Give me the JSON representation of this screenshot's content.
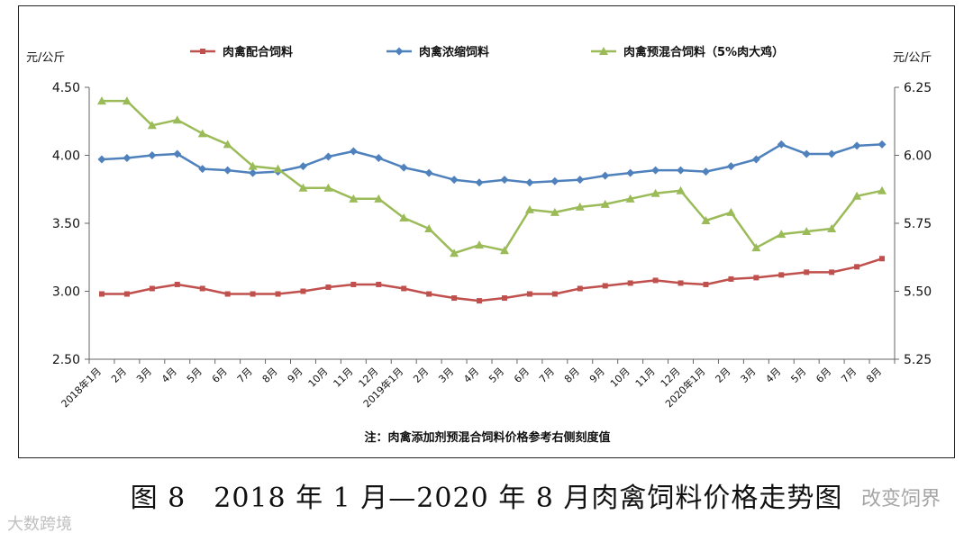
{
  "chart_data": {
    "type": "line",
    "categories": [
      "2018年1月",
      "2月",
      "3月",
      "4月",
      "5月",
      "6月",
      "7月",
      "8月",
      "9月",
      "10月",
      "11月",
      "12月",
      "2019年1月",
      "2月",
      "3月",
      "4月",
      "5月",
      "6月",
      "7月",
      "8月",
      "9月",
      "10月",
      "11月",
      "12月",
      "2020年1月",
      "2月",
      "3月",
      "4月",
      "5月",
      "6月",
      "7月",
      "8月"
    ],
    "series": [
      {
        "name": "肉禽配合饲料",
        "axis": "left",
        "color": "#c0504d",
        "marker": "square",
        "values": [
          2.98,
          2.98,
          3.02,
          3.05,
          3.02,
          2.98,
          2.98,
          2.98,
          3.0,
          3.03,
          3.05,
          3.05,
          3.02,
          2.98,
          2.95,
          2.93,
          2.95,
          2.98,
          2.98,
          3.02,
          3.04,
          3.06,
          3.08,
          3.06,
          3.05,
          3.09,
          3.1,
          3.12,
          3.14,
          3.14,
          3.18,
          3.24
        ]
      },
      {
        "name": "肉禽浓缩饲料",
        "axis": "left",
        "color": "#4f81bd",
        "marker": "diamond",
        "values": [
          3.97,
          3.98,
          4.0,
          4.01,
          3.9,
          3.89,
          3.87,
          3.88,
          3.92,
          3.99,
          4.03,
          3.98,
          3.91,
          3.87,
          3.82,
          3.8,
          3.82,
          3.8,
          3.81,
          3.82,
          3.85,
          3.87,
          3.89,
          3.89,
          3.88,
          3.92,
          3.97,
          4.08,
          4.01,
          4.01,
          4.07,
          4.08
        ]
      },
      {
        "name": "肉禽预混合饲料（5%肉大鸡）",
        "axis": "right",
        "color": "#9bbb59",
        "marker": "triangle",
        "values": [
          6.2,
          6.2,
          6.11,
          6.13,
          6.08,
          6.04,
          5.96,
          5.95,
          5.88,
          5.88,
          5.84,
          5.84,
          5.77,
          5.73,
          5.64,
          5.67,
          5.65,
          5.8,
          5.79,
          5.81,
          5.82,
          5.84,
          5.86,
          5.87,
          5.76,
          5.79,
          5.66,
          5.71,
          5.72,
          5.73,
          5.85,
          5.87
        ]
      }
    ],
    "y_left": {
      "label": "元/公斤",
      "min": 2.5,
      "max": 4.5,
      "ticks": [
        "4.50",
        "4.00",
        "3.50",
        "3.00",
        "2.50"
      ]
    },
    "y_right": {
      "label": "元/公斤",
      "min": 5.25,
      "max": 6.25,
      "ticks": [
        "6.25",
        "6.00",
        "5.75",
        "5.50",
        "5.25"
      ]
    },
    "legend_position": "top-center",
    "grid": false,
    "note": "注：肉禽添加剂预混合饲料价格参考右侧刻度值"
  },
  "caption": "图 8　2018 年 1 月—2020 年 8 月肉禽饲料价格走势图",
  "watermarks": {
    "right": "改变饲界",
    "left": "大数跨境"
  }
}
